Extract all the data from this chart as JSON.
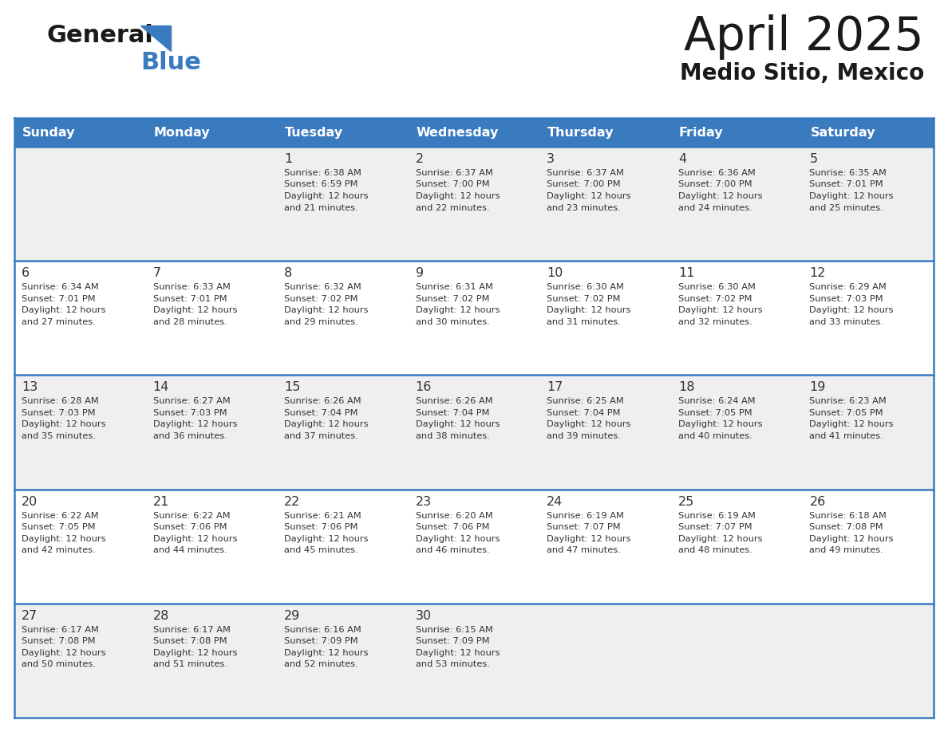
{
  "title": "April 2025",
  "subtitle": "Medio Sitio, Mexico",
  "days_of_week": [
    "Sunday",
    "Monday",
    "Tuesday",
    "Wednesday",
    "Thursday",
    "Friday",
    "Saturday"
  ],
  "header_bg": "#3a7abf",
  "header_text": "#ffffff",
  "row_bg_even": "#efefef",
  "row_bg_odd": "#ffffff",
  "text_color": "#333333",
  "cell_line_color": "#3a7abf",
  "logo_color": "#3a7abf",
  "weeks": [
    {
      "days": [
        {
          "day": null,
          "info": null
        },
        {
          "day": null,
          "info": null
        },
        {
          "day": 1,
          "info": {
            "sunrise": "6:38 AM",
            "sunset": "6:59 PM",
            "daylight": "12 hours",
            "daylight2": "and 21 minutes."
          }
        },
        {
          "day": 2,
          "info": {
            "sunrise": "6:37 AM",
            "sunset": "7:00 PM",
            "daylight": "12 hours",
            "daylight2": "and 22 minutes."
          }
        },
        {
          "day": 3,
          "info": {
            "sunrise": "6:37 AM",
            "sunset": "7:00 PM",
            "daylight": "12 hours",
            "daylight2": "and 23 minutes."
          }
        },
        {
          "day": 4,
          "info": {
            "sunrise": "6:36 AM",
            "sunset": "7:00 PM",
            "daylight": "12 hours",
            "daylight2": "and 24 minutes."
          }
        },
        {
          "day": 5,
          "info": {
            "sunrise": "6:35 AM",
            "sunset": "7:01 PM",
            "daylight": "12 hours",
            "daylight2": "and 25 minutes."
          }
        }
      ]
    },
    {
      "days": [
        {
          "day": 6,
          "info": {
            "sunrise": "6:34 AM",
            "sunset": "7:01 PM",
            "daylight": "12 hours",
            "daylight2": "and 27 minutes."
          }
        },
        {
          "day": 7,
          "info": {
            "sunrise": "6:33 AM",
            "sunset": "7:01 PM",
            "daylight": "12 hours",
            "daylight2": "and 28 minutes."
          }
        },
        {
          "day": 8,
          "info": {
            "sunrise": "6:32 AM",
            "sunset": "7:02 PM",
            "daylight": "12 hours",
            "daylight2": "and 29 minutes."
          }
        },
        {
          "day": 9,
          "info": {
            "sunrise": "6:31 AM",
            "sunset": "7:02 PM",
            "daylight": "12 hours",
            "daylight2": "and 30 minutes."
          }
        },
        {
          "day": 10,
          "info": {
            "sunrise": "6:30 AM",
            "sunset": "7:02 PM",
            "daylight": "12 hours",
            "daylight2": "and 31 minutes."
          }
        },
        {
          "day": 11,
          "info": {
            "sunrise": "6:30 AM",
            "sunset": "7:02 PM",
            "daylight": "12 hours",
            "daylight2": "and 32 minutes."
          }
        },
        {
          "day": 12,
          "info": {
            "sunrise": "6:29 AM",
            "sunset": "7:03 PM",
            "daylight": "12 hours",
            "daylight2": "and 33 minutes."
          }
        }
      ]
    },
    {
      "days": [
        {
          "day": 13,
          "info": {
            "sunrise": "6:28 AM",
            "sunset": "7:03 PM",
            "daylight": "12 hours",
            "daylight2": "and 35 minutes."
          }
        },
        {
          "day": 14,
          "info": {
            "sunrise": "6:27 AM",
            "sunset": "7:03 PM",
            "daylight": "12 hours",
            "daylight2": "and 36 minutes."
          }
        },
        {
          "day": 15,
          "info": {
            "sunrise": "6:26 AM",
            "sunset": "7:04 PM",
            "daylight": "12 hours",
            "daylight2": "and 37 minutes."
          }
        },
        {
          "day": 16,
          "info": {
            "sunrise": "6:26 AM",
            "sunset": "7:04 PM",
            "daylight": "12 hours",
            "daylight2": "and 38 minutes."
          }
        },
        {
          "day": 17,
          "info": {
            "sunrise": "6:25 AM",
            "sunset": "7:04 PM",
            "daylight": "12 hours",
            "daylight2": "and 39 minutes."
          }
        },
        {
          "day": 18,
          "info": {
            "sunrise": "6:24 AM",
            "sunset": "7:05 PM",
            "daylight": "12 hours",
            "daylight2": "and 40 minutes."
          }
        },
        {
          "day": 19,
          "info": {
            "sunrise": "6:23 AM",
            "sunset": "7:05 PM",
            "daylight": "12 hours",
            "daylight2": "and 41 minutes."
          }
        }
      ]
    },
    {
      "days": [
        {
          "day": 20,
          "info": {
            "sunrise": "6:22 AM",
            "sunset": "7:05 PM",
            "daylight": "12 hours",
            "daylight2": "and 42 minutes."
          }
        },
        {
          "day": 21,
          "info": {
            "sunrise": "6:22 AM",
            "sunset": "7:06 PM",
            "daylight": "12 hours",
            "daylight2": "and 44 minutes."
          }
        },
        {
          "day": 22,
          "info": {
            "sunrise": "6:21 AM",
            "sunset": "7:06 PM",
            "daylight": "12 hours",
            "daylight2": "and 45 minutes."
          }
        },
        {
          "day": 23,
          "info": {
            "sunrise": "6:20 AM",
            "sunset": "7:06 PM",
            "daylight": "12 hours",
            "daylight2": "and 46 minutes."
          }
        },
        {
          "day": 24,
          "info": {
            "sunrise": "6:19 AM",
            "sunset": "7:07 PM",
            "daylight": "12 hours",
            "daylight2": "and 47 minutes."
          }
        },
        {
          "day": 25,
          "info": {
            "sunrise": "6:19 AM",
            "sunset": "7:07 PM",
            "daylight": "12 hours",
            "daylight2": "and 48 minutes."
          }
        },
        {
          "day": 26,
          "info": {
            "sunrise": "6:18 AM",
            "sunset": "7:08 PM",
            "daylight": "12 hours",
            "daylight2": "and 49 minutes."
          }
        }
      ]
    },
    {
      "days": [
        {
          "day": 27,
          "info": {
            "sunrise": "6:17 AM",
            "sunset": "7:08 PM",
            "daylight": "12 hours",
            "daylight2": "and 50 minutes."
          }
        },
        {
          "day": 28,
          "info": {
            "sunrise": "6:17 AM",
            "sunset": "7:08 PM",
            "daylight": "12 hours",
            "daylight2": "and 51 minutes."
          }
        },
        {
          "day": 29,
          "info": {
            "sunrise": "6:16 AM",
            "sunset": "7:09 PM",
            "daylight": "12 hours",
            "daylight2": "and 52 minutes."
          }
        },
        {
          "day": 30,
          "info": {
            "sunrise": "6:15 AM",
            "sunset": "7:09 PM",
            "daylight": "12 hours",
            "daylight2": "and 53 minutes."
          }
        },
        {
          "day": null,
          "info": null
        },
        {
          "day": null,
          "info": null
        },
        {
          "day": null,
          "info": null
        }
      ]
    }
  ]
}
